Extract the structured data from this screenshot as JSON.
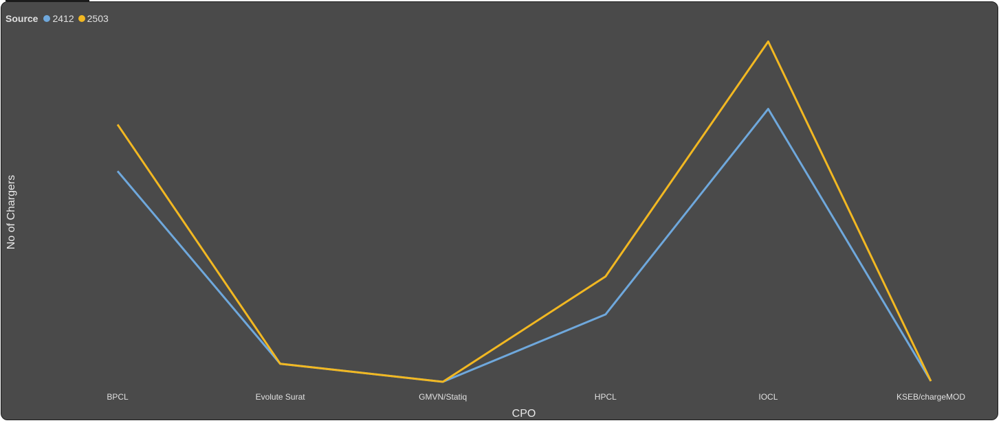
{
  "chart_data": {
    "type": "line",
    "categories": [
      "BPCL",
      "Evolute Surat",
      "GMVN/Statiq",
      "HPCL",
      "IOCL",
      "KSEB/chargeMOD"
    ],
    "series": [
      {
        "name": "2412",
        "color": "#6fa8dc",
        "values": [
          610,
          52,
          0,
          195,
          790,
          2
        ]
      },
      {
        "name": "2503",
        "color": "#f2b822",
        "values": [
          745,
          52,
          0,
          305,
          985,
          2
        ]
      }
    ],
    "legend": {
      "title": "Source",
      "placement": "top-left"
    },
    "xlabel": "CPO",
    "ylabel": "No of Chargers",
    "ylim": [
      0,
      1000
    ],
    "grid": false,
    "background": "#4a4a4a"
  }
}
